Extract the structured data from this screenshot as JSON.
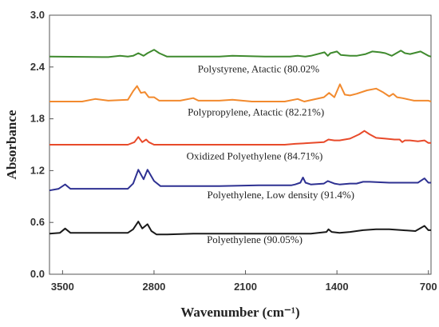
{
  "chart_data": {
    "type": "line",
    "xlabel": "Wavenumber (cm⁻¹)",
    "ylabel": "Absorbance",
    "xlim": [
      3600,
      680
    ],
    "ylim": [
      0,
      3.0
    ],
    "x_ticks": [
      3500,
      2800,
      2100,
      1400,
      700
    ],
    "y_ticks": [
      0.0,
      0.6,
      1.2,
      1.8,
      2.4,
      3.0
    ],
    "y_tick_labels": [
      "0.0",
      "0.6",
      "1.2",
      "1.8",
      "2.4",
      "3.0"
    ],
    "grid": false,
    "series": [
      {
        "label": "Polystyrene, Atactic (80.02%",
        "color": "#3f8a2e",
        "label_x": 2000,
        "label_y": 2.34,
        "points": [
          [
            3600,
            2.52
          ],
          [
            3150,
            2.515
          ],
          [
            3060,
            2.53
          ],
          [
            3000,
            2.52
          ],
          [
            2960,
            2.53
          ],
          [
            2920,
            2.56
          ],
          [
            2880,
            2.53
          ],
          [
            2850,
            2.56
          ],
          [
            2800,
            2.6
          ],
          [
            2760,
            2.56
          ],
          [
            2700,
            2.52
          ],
          [
            2300,
            2.52
          ],
          [
            2200,
            2.53
          ],
          [
            1950,
            2.52
          ],
          [
            1760,
            2.52
          ],
          [
            1700,
            2.53
          ],
          [
            1640,
            2.52
          ],
          [
            1600,
            2.53
          ],
          [
            1495,
            2.57
          ],
          [
            1470,
            2.53
          ],
          [
            1450,
            2.56
          ],
          [
            1400,
            2.58
          ],
          [
            1370,
            2.54
          ],
          [
            1300,
            2.53
          ],
          [
            1250,
            2.53
          ],
          [
            1180,
            2.55
          ],
          [
            1130,
            2.58
          ],
          [
            1070,
            2.57
          ],
          [
            1030,
            2.56
          ],
          [
            980,
            2.53
          ],
          [
            910,
            2.59
          ],
          [
            880,
            2.56
          ],
          [
            840,
            2.55
          ],
          [
            760,
            2.58
          ],
          [
            700,
            2.53
          ],
          [
            680,
            2.52
          ]
        ]
      },
      {
        "label": "Polypropylene, Atactic (82.21%)",
        "color": "#f28a2e",
        "label_x": 2020,
        "label_y": 1.84,
        "points": [
          [
            3600,
            2.0
          ],
          [
            3350,
            2.0
          ],
          [
            3250,
            2.03
          ],
          [
            3150,
            2.01
          ],
          [
            3000,
            2.02
          ],
          [
            2960,
            2.12
          ],
          [
            2930,
            2.18
          ],
          [
            2900,
            2.1
          ],
          [
            2870,
            2.11
          ],
          [
            2840,
            2.05
          ],
          [
            2800,
            2.05
          ],
          [
            2760,
            2.01
          ],
          [
            2600,
            2.01
          ],
          [
            2500,
            2.04
          ],
          [
            2460,
            2.01
          ],
          [
            2300,
            2.01
          ],
          [
            2200,
            2.02
          ],
          [
            2050,
            2.0
          ],
          [
            1800,
            2.0
          ],
          [
            1700,
            2.03
          ],
          [
            1650,
            2.0
          ],
          [
            1500,
            2.05
          ],
          [
            1460,
            2.1
          ],
          [
            1420,
            2.05
          ],
          [
            1377,
            2.2
          ],
          [
            1340,
            2.08
          ],
          [
            1300,
            2.07
          ],
          [
            1250,
            2.09
          ],
          [
            1170,
            2.13
          ],
          [
            1100,
            2.15
          ],
          [
            1050,
            2.11
          ],
          [
            1000,
            2.06
          ],
          [
            970,
            2.09
          ],
          [
            940,
            2.05
          ],
          [
            900,
            2.04
          ],
          [
            840,
            2.02
          ],
          [
            810,
            2.01
          ],
          [
            700,
            2.01
          ],
          [
            680,
            2.0
          ]
        ]
      },
      {
        "label": "Oxidized Polyethylene (84.71%)",
        "color": "#e84a2a",
        "label_x": 2030,
        "label_y": 1.33,
        "points": [
          [
            3600,
            1.5
          ],
          [
            3300,
            1.5
          ],
          [
            3000,
            1.5
          ],
          [
            2950,
            1.53
          ],
          [
            2920,
            1.59
          ],
          [
            2890,
            1.53
          ],
          [
            2860,
            1.56
          ],
          [
            2840,
            1.53
          ],
          [
            2800,
            1.5
          ],
          [
            2700,
            1.5
          ],
          [
            2300,
            1.5
          ],
          [
            2000,
            1.5
          ],
          [
            1800,
            1.5
          ],
          [
            1720,
            1.51
          ],
          [
            1600,
            1.52
          ],
          [
            1500,
            1.53
          ],
          [
            1465,
            1.56
          ],
          [
            1420,
            1.55
          ],
          [
            1380,
            1.55
          ],
          [
            1300,
            1.57
          ],
          [
            1230,
            1.62
          ],
          [
            1190,
            1.66
          ],
          [
            1150,
            1.62
          ],
          [
            1100,
            1.58
          ],
          [
            1030,
            1.57
          ],
          [
            960,
            1.56
          ],
          [
            920,
            1.56
          ],
          [
            900,
            1.53
          ],
          [
            880,
            1.55
          ],
          [
            840,
            1.55
          ],
          [
            780,
            1.54
          ],
          [
            730,
            1.55
          ],
          [
            700,
            1.52
          ],
          [
            680,
            1.52
          ]
        ]
      },
      {
        "label": "Polyethylene, Low density (91.4%)",
        "color": "#2e3192",
        "label_x": 1830,
        "label_y": 0.88,
        "points": [
          [
            3600,
            0.97
          ],
          [
            3530,
            0.99
          ],
          [
            3480,
            1.04
          ],
          [
            3440,
            0.99
          ],
          [
            3300,
            0.99
          ],
          [
            3100,
            0.99
          ],
          [
            3000,
            0.99
          ],
          [
            2960,
            1.05
          ],
          [
            2920,
            1.21
          ],
          [
            2880,
            1.1
          ],
          [
            2850,
            1.21
          ],
          [
            2800,
            1.08
          ],
          [
            2750,
            1.02
          ],
          [
            2600,
            1.02
          ],
          [
            2300,
            1.02
          ],
          [
            2000,
            1.03
          ],
          [
            1750,
            1.03
          ],
          [
            1720,
            1.04
          ],
          [
            1680,
            1.06
          ],
          [
            1660,
            1.12
          ],
          [
            1640,
            1.06
          ],
          [
            1600,
            1.04
          ],
          [
            1500,
            1.05
          ],
          [
            1470,
            1.08
          ],
          [
            1420,
            1.05
          ],
          [
            1380,
            1.04
          ],
          [
            1300,
            1.05
          ],
          [
            1250,
            1.05
          ],
          [
            1200,
            1.07
          ],
          [
            1150,
            1.07
          ],
          [
            1000,
            1.06
          ],
          [
            900,
            1.06
          ],
          [
            780,
            1.06
          ],
          [
            730,
            1.11
          ],
          [
            700,
            1.06
          ],
          [
            680,
            1.06
          ]
        ]
      },
      {
        "label": "Polyethylene (90.05%)",
        "color": "#1a1a1a",
        "label_x": 2030,
        "label_y": 0.36,
        "points": [
          [
            3600,
            0.47
          ],
          [
            3520,
            0.48
          ],
          [
            3480,
            0.53
          ],
          [
            3440,
            0.48
          ],
          [
            3300,
            0.48
          ],
          [
            3100,
            0.48
          ],
          [
            3000,
            0.48
          ],
          [
            2960,
            0.52
          ],
          [
            2920,
            0.61
          ],
          [
            2890,
            0.53
          ],
          [
            2850,
            0.58
          ],
          [
            2820,
            0.5
          ],
          [
            2780,
            0.46
          ],
          [
            2700,
            0.46
          ],
          [
            2500,
            0.47
          ],
          [
            2200,
            0.47
          ],
          [
            2000,
            0.47
          ],
          [
            1800,
            0.47
          ],
          [
            1600,
            0.47
          ],
          [
            1480,
            0.49
          ],
          [
            1465,
            0.52
          ],
          [
            1440,
            0.49
          ],
          [
            1380,
            0.48
          ],
          [
            1300,
            0.49
          ],
          [
            1200,
            0.51
          ],
          [
            1100,
            0.52
          ],
          [
            1000,
            0.52
          ],
          [
            900,
            0.51
          ],
          [
            800,
            0.5
          ],
          [
            730,
            0.56
          ],
          [
            700,
            0.51
          ],
          [
            680,
            0.51
          ]
        ]
      }
    ]
  }
}
